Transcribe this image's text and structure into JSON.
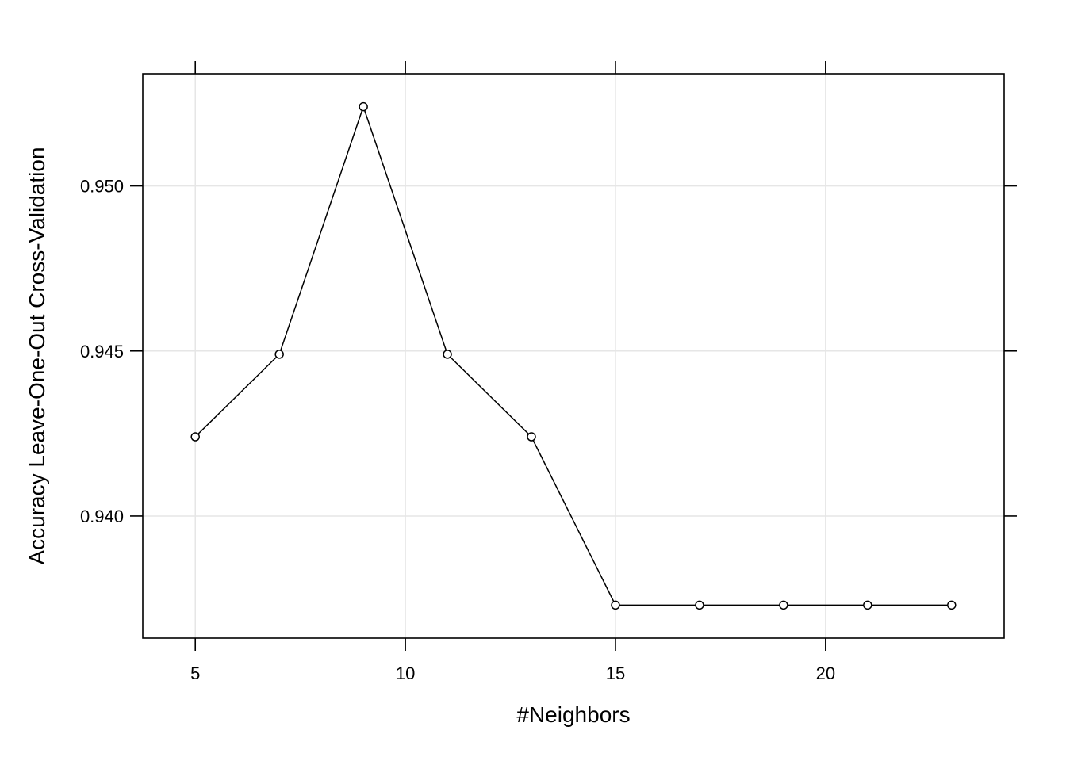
{
  "chart_data": {
    "type": "line",
    "title": "",
    "xlabel": "#Neighbors",
    "ylabel": "Accuracy Leave-One-Out Cross-Validation",
    "xlim": [
      3.75,
      24.25
    ],
    "ylim": [
      0.9363,
      0.9534
    ],
    "x_ticks": [
      5,
      10,
      15,
      20
    ],
    "x_tick_labels": [
      "5",
      "10",
      "15",
      "20"
    ],
    "y_ticks": [
      0.94,
      0.945,
      0.95
    ],
    "y_tick_labels": [
      "0.940",
      "0.945",
      "0.950"
    ],
    "grid": true,
    "marker": "open-circle",
    "series": [
      {
        "x": [
          5,
          7,
          9,
          11,
          13,
          15,
          17,
          19,
          21,
          23
        ],
        "y": [
          0.9424,
          0.9449,
          0.9524,
          0.9449,
          0.9424,
          0.9373,
          0.9373,
          0.9373,
          0.9373,
          0.9373
        ]
      }
    ],
    "colors": {
      "line": "#000000",
      "grid": "#e6e6e6",
      "frame": "#000000"
    }
  }
}
